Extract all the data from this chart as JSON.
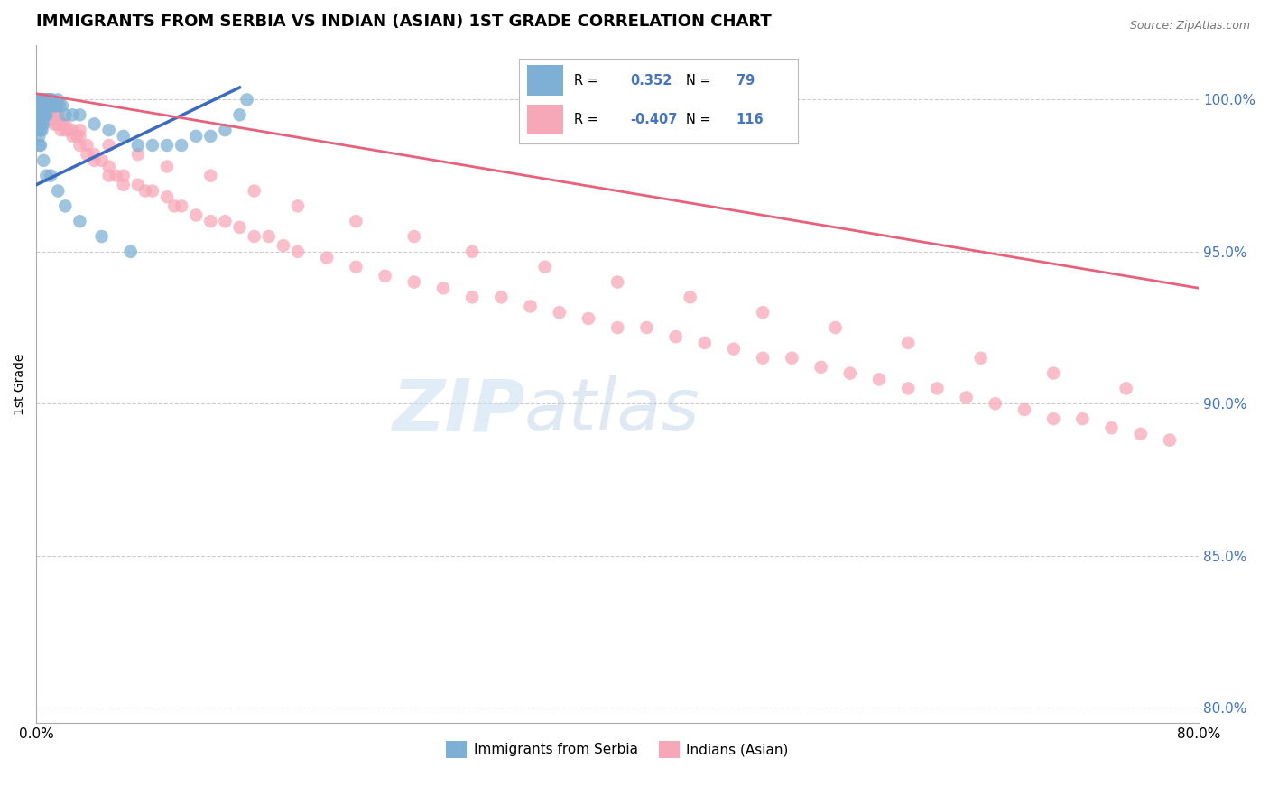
{
  "title": "IMMIGRANTS FROM SERBIA VS INDIAN (ASIAN) 1ST GRADE CORRELATION CHART",
  "source_text": "Source: ZipAtlas.com",
  "ylabel": "1st Grade",
  "y_ticks": [
    80.0,
    85.0,
    90.0,
    95.0,
    100.0
  ],
  "y_tick_labels": [
    "80.0%",
    "85.0%",
    "90.0%",
    "95.0%",
    "100.0%"
  ],
  "xlim": [
    0.0,
    80.0
  ],
  "ylim": [
    79.5,
    101.8
  ],
  "blue_color": "#7EB0D5",
  "pink_color": "#F7A8B8",
  "blue_line_color": "#3A6BBF",
  "pink_line_color": "#E8607A",
  "legend_R_blue": "0.352",
  "legend_N_blue": "79",
  "legend_R_pink": "-0.407",
  "legend_N_pink": "116",
  "legend_label_blue": "Immigrants from Serbia",
  "legend_label_pink": "Indians (Asian)",
  "blue_line_x": [
    0.0,
    14.0
  ],
  "blue_line_y": [
    97.2,
    100.4
  ],
  "pink_line_x": [
    0.0,
    80.0
  ],
  "pink_line_y": [
    100.2,
    93.8
  ],
  "blue_x": [
    0.1,
    0.1,
    0.1,
    0.1,
    0.1,
    0.15,
    0.15,
    0.15,
    0.2,
    0.2,
    0.2,
    0.2,
    0.2,
    0.2,
    0.2,
    0.2,
    0.25,
    0.25,
    0.25,
    0.25,
    0.3,
    0.3,
    0.3,
    0.3,
    0.3,
    0.35,
    0.35,
    0.35,
    0.4,
    0.4,
    0.4,
    0.4,
    0.4,
    0.5,
    0.5,
    0.5,
    0.5,
    0.6,
    0.6,
    0.6,
    0.7,
    0.7,
    0.7,
    0.8,
    0.8,
    0.9,
    1.0,
    1.0,
    1.1,
    1.2,
    1.3,
    1.4,
    1.5,
    1.6,
    1.8,
    2.0,
    2.5,
    3.0,
    4.0,
    5.0,
    6.0,
    7.0,
    8.0,
    9.0,
    10.0,
    11.0,
    12.0,
    13.0,
    14.0,
    14.5,
    0.3,
    0.5,
    0.7,
    1.0,
    1.5,
    2.0,
    3.0,
    4.5,
    6.5
  ],
  "blue_y": [
    100.0,
    100.0,
    99.8,
    99.5,
    99.2,
    100.0,
    99.8,
    99.5,
    100.0,
    100.0,
    99.8,
    99.5,
    99.3,
    99.0,
    98.8,
    98.5,
    100.0,
    99.8,
    99.5,
    99.2,
    100.0,
    99.8,
    99.5,
    99.2,
    99.0,
    100.0,
    99.8,
    99.5,
    100.0,
    99.8,
    99.5,
    99.2,
    99.0,
    100.0,
    99.8,
    99.5,
    99.2,
    100.0,
    99.8,
    99.5,
    100.0,
    99.8,
    99.5,
    100.0,
    99.8,
    100.0,
    100.0,
    99.8,
    100.0,
    99.8,
    99.8,
    99.8,
    100.0,
    99.8,
    99.8,
    99.5,
    99.5,
    99.5,
    99.2,
    99.0,
    98.8,
    98.5,
    98.5,
    98.5,
    98.5,
    98.8,
    98.8,
    99.0,
    99.5,
    100.0,
    98.5,
    98.0,
    97.5,
    97.5,
    97.0,
    96.5,
    96.0,
    95.5,
    95.0
  ],
  "pink_x": [
    0.1,
    0.1,
    0.15,
    0.15,
    0.2,
    0.2,
    0.2,
    0.2,
    0.25,
    0.25,
    0.3,
    0.3,
    0.3,
    0.4,
    0.4,
    0.4,
    0.5,
    0.5,
    0.5,
    0.6,
    0.6,
    0.7,
    0.7,
    0.8,
    0.8,
    0.9,
    1.0,
    1.0,
    1.2,
    1.2,
    1.4,
    1.5,
    1.5,
    1.7,
    1.8,
    2.0,
    2.0,
    2.2,
    2.5,
    2.5,
    2.8,
    3.0,
    3.0,
    3.5,
    3.5,
    4.0,
    4.0,
    4.5,
    5.0,
    5.0,
    5.5,
    6.0,
    6.0,
    7.0,
    7.5,
    8.0,
    9.0,
    9.5,
    10.0,
    11.0,
    12.0,
    13.0,
    14.0,
    15.0,
    16.0,
    17.0,
    18.0,
    20.0,
    22.0,
    24.0,
    26.0,
    28.0,
    30.0,
    32.0,
    34.0,
    36.0,
    38.0,
    40.0,
    42.0,
    44.0,
    46.0,
    48.0,
    50.0,
    52.0,
    54.0,
    56.0,
    58.0,
    60.0,
    62.0,
    64.0,
    66.0,
    68.0,
    70.0,
    72.0,
    74.0,
    76.0,
    78.0,
    3.0,
    5.0,
    7.0,
    9.0,
    12.0,
    15.0,
    18.0,
    22.0,
    26.0,
    30.0,
    35.0,
    40.0,
    45.0,
    50.0,
    55.0,
    60.0,
    65.0,
    70.0,
    75.0
  ],
  "pink_y": [
    100.0,
    99.8,
    100.0,
    99.8,
    100.0,
    99.8,
    99.5,
    99.3,
    100.0,
    99.8,
    100.0,
    99.8,
    99.5,
    100.0,
    99.8,
    99.5,
    100.0,
    99.8,
    99.5,
    99.8,
    99.5,
    99.8,
    99.5,
    99.8,
    99.5,
    99.5,
    99.8,
    99.5,
    99.5,
    99.2,
    99.2,
    99.5,
    99.2,
    99.0,
    99.2,
    99.2,
    99.0,
    99.0,
    99.0,
    98.8,
    98.8,
    98.8,
    98.5,
    98.5,
    98.2,
    98.2,
    98.0,
    98.0,
    97.8,
    97.5,
    97.5,
    97.5,
    97.2,
    97.2,
    97.0,
    97.0,
    96.8,
    96.5,
    96.5,
    96.2,
    96.0,
    96.0,
    95.8,
    95.5,
    95.5,
    95.2,
    95.0,
    94.8,
    94.5,
    94.2,
    94.0,
    93.8,
    93.5,
    93.5,
    93.2,
    93.0,
    92.8,
    92.5,
    92.5,
    92.2,
    92.0,
    91.8,
    91.5,
    91.5,
    91.2,
    91.0,
    90.8,
    90.5,
    90.5,
    90.2,
    90.0,
    89.8,
    89.5,
    89.5,
    89.2,
    89.0,
    88.8,
    99.0,
    98.5,
    98.2,
    97.8,
    97.5,
    97.0,
    96.5,
    96.0,
    95.5,
    95.0,
    94.5,
    94.0,
    93.5,
    93.0,
    92.5,
    92.0,
    91.5,
    91.0,
    90.5
  ]
}
